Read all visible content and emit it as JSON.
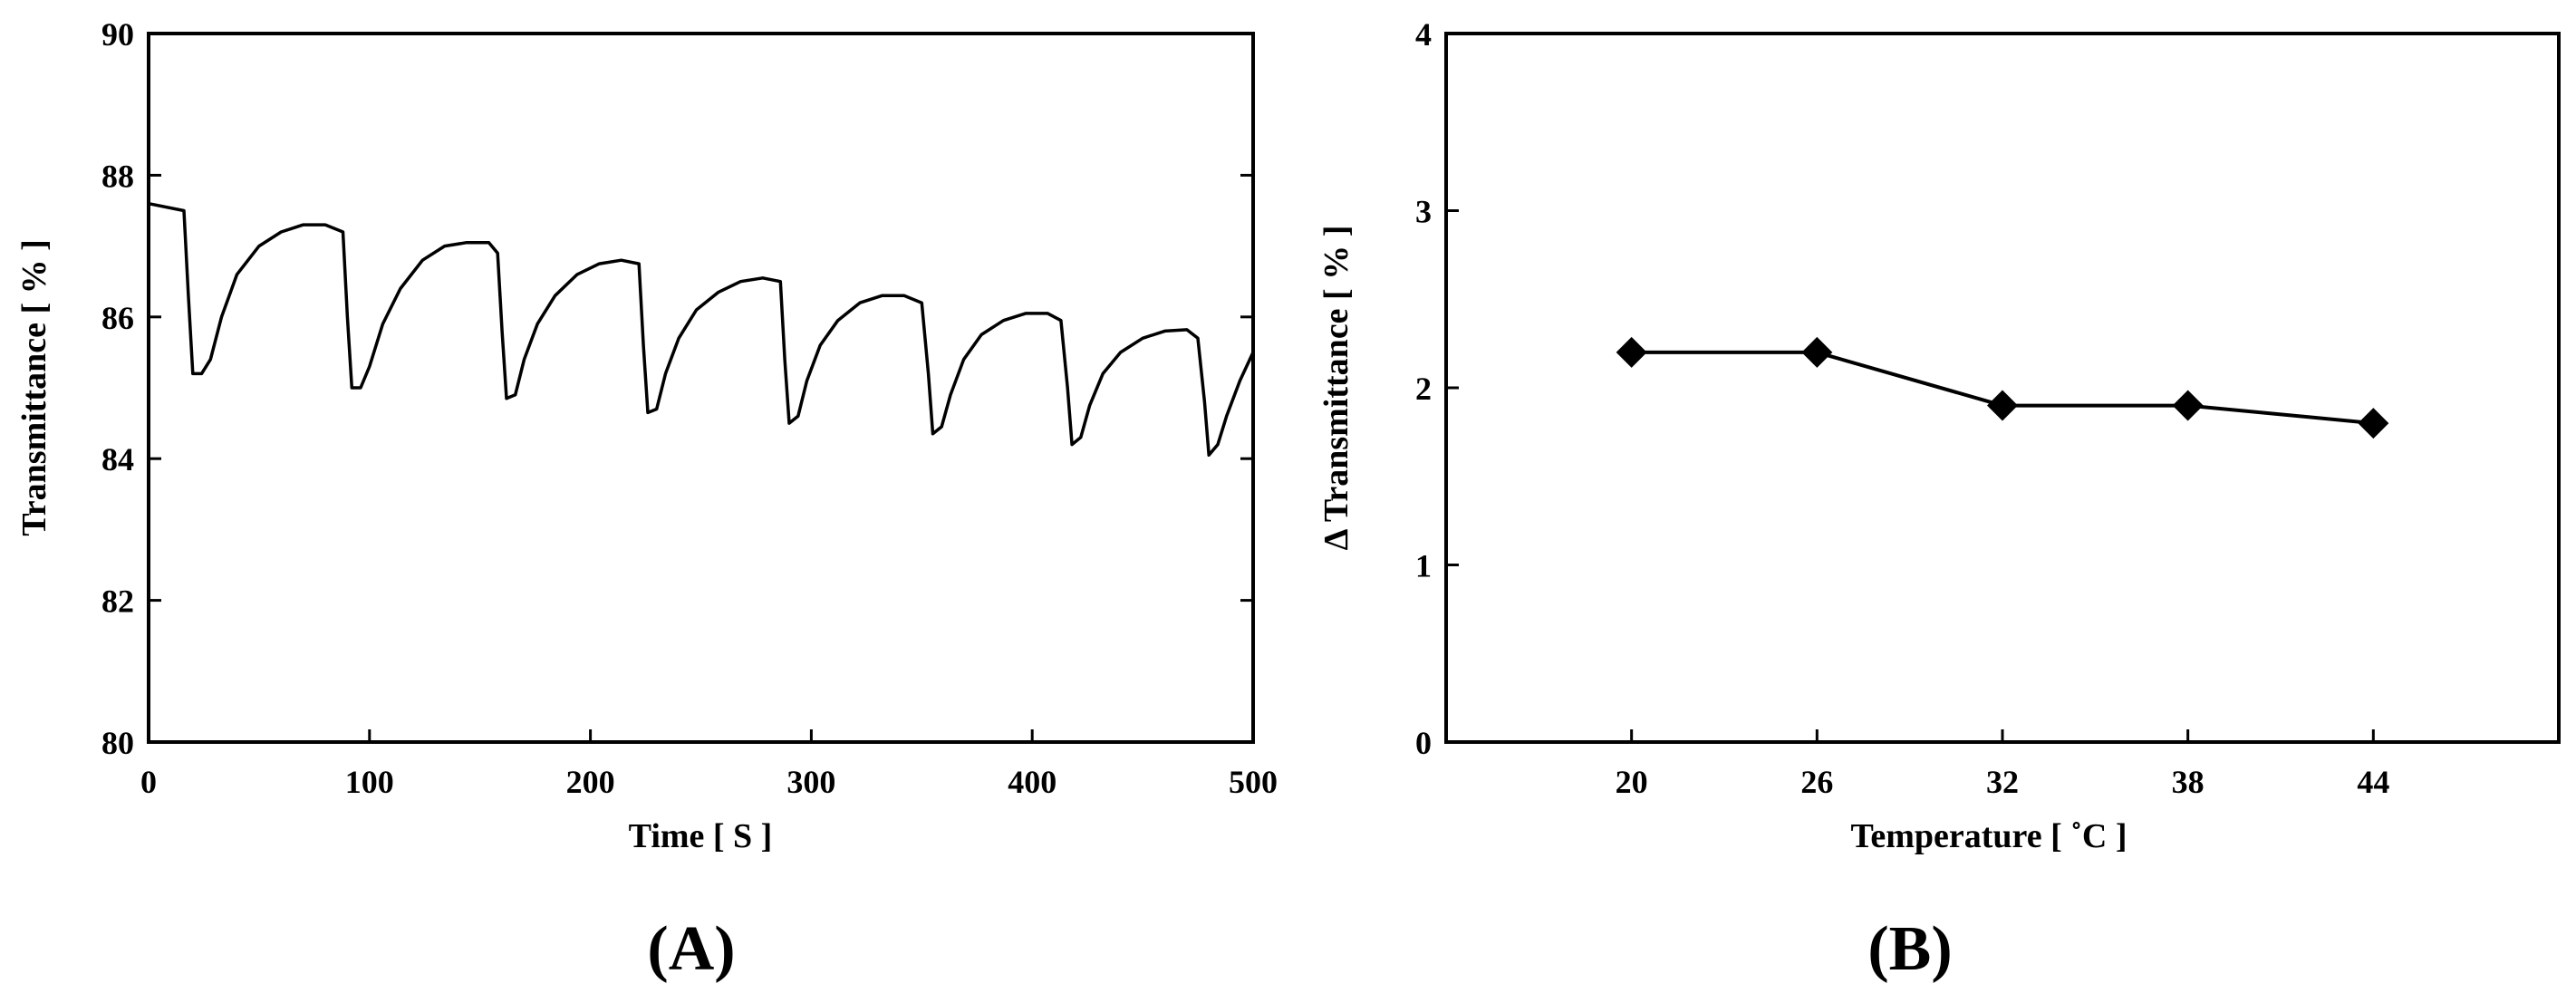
{
  "colors": {
    "line": "#000000",
    "marker": "#000000",
    "background": "#ffffff"
  },
  "chart_data": [
    {
      "panel": "(A)",
      "type": "line",
      "xlabel": "Time [ S ]",
      "ylabel": "Transmittance [ % ]",
      "xlim": [
        0,
        500
      ],
      "ylim": [
        80,
        90
      ],
      "xticks": [
        "0",
        "100",
        "200",
        "300",
        "400",
        "500"
      ],
      "yticks": [
        "80",
        "82",
        "84",
        "86",
        "88",
        "90"
      ],
      "grid": false,
      "series": [
        {
          "x": [
            0,
            16,
            18,
            20,
            24,
            28,
            33,
            40,
            50,
            60,
            70,
            80,
            88,
            90,
            92,
            96,
            100,
            106,
            114,
            124,
            134,
            144,
            154,
            158,
            160,
            162,
            166,
            170,
            176,
            184,
            194,
            204,
            214,
            222,
            224,
            226,
            230,
            234,
            240,
            248,
            258,
            268,
            278,
            286,
            288,
            290,
            294,
            298,
            304,
            312,
            322,
            332,
            342,
            350,
            353,
            355,
            359,
            363,
            369,
            377,
            387,
            397,
            407,
            413,
            416,
            418,
            422,
            426,
            432,
            440,
            450,
            460,
            470,
            475,
            478,
            480,
            484,
            488,
            494,
            500
          ],
          "y": [
            87.6,
            87.5,
            86.3,
            85.2,
            85.2,
            85.4,
            86.0,
            86.6,
            87.0,
            87.2,
            87.3,
            87.3,
            87.2,
            86.0,
            85.0,
            85.0,
            85.3,
            85.9,
            86.4,
            86.8,
            87.0,
            87.05,
            87.05,
            86.9,
            85.8,
            84.85,
            84.9,
            85.4,
            85.9,
            86.3,
            86.6,
            86.75,
            86.8,
            86.75,
            85.6,
            84.65,
            84.7,
            85.2,
            85.7,
            86.1,
            86.35,
            86.5,
            86.55,
            86.5,
            85.4,
            84.5,
            84.6,
            85.1,
            85.6,
            85.95,
            86.2,
            86.3,
            86.3,
            86.2,
            85.2,
            84.35,
            84.45,
            84.9,
            85.4,
            85.75,
            85.95,
            86.05,
            86.05,
            85.95,
            85.0,
            84.2,
            84.3,
            84.75,
            85.2,
            85.5,
            85.7,
            85.8,
            85.82,
            85.7,
            84.8,
            84.05,
            84.2,
            84.6,
            85.1,
            85.5
          ]
        }
      ]
    },
    {
      "panel": "(B)",
      "type": "line",
      "xlabel": "Temperature [ ˚C ]",
      "ylabel": "Δ Transmittance [ % ]",
      "categories": [
        "20",
        "26",
        "32",
        "38",
        "44"
      ],
      "ylim": [
        0,
        4
      ],
      "yticks": [
        "0",
        "1",
        "2",
        "3",
        "4"
      ],
      "grid": false,
      "marker": "diamond",
      "series": [
        {
          "values": [
            2.2,
            2.2,
            1.9,
            1.9,
            1.8
          ]
        }
      ]
    }
  ]
}
